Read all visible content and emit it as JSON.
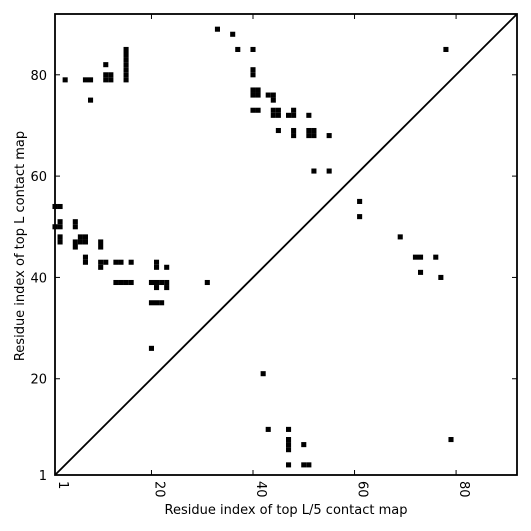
{
  "chart_data": {
    "type": "scatter",
    "title": "",
    "xlabel": "Residue index of top L/5 contact map",
    "ylabel": "Residue index of top L contact map",
    "xlim": [
      1,
      92
    ],
    "ylim": [
      1,
      92
    ],
    "xticks": [
      1,
      20,
      40,
      60,
      80
    ],
    "yticks": [
      1,
      20,
      40,
      60,
      80
    ],
    "grid": false,
    "diagonal": true,
    "marker_color": "#000000",
    "upper_triangle": {
      "name": "top L contact map",
      "points": [
        [
          3,
          79
        ],
        [
          7,
          79
        ],
        [
          8,
          79
        ],
        [
          8,
          75
        ],
        [
          11,
          79
        ],
        [
          11,
          80
        ],
        [
          12,
          79
        ],
        [
          12,
          80
        ],
        [
          11,
          82
        ],
        [
          15,
          79
        ],
        [
          15,
          80
        ],
        [
          15,
          81
        ],
        [
          15,
          82
        ],
        [
          15,
          83
        ],
        [
          15,
          84
        ],
        [
          15,
          85
        ],
        [
          33,
          89
        ],
        [
          36,
          88
        ],
        [
          37,
          85
        ],
        [
          40,
          85
        ],
        [
          40,
          81
        ],
        [
          40,
          80
        ],
        [
          40,
          77
        ],
        [
          41,
          77
        ],
        [
          40,
          76
        ],
        [
          41,
          76
        ],
        [
          40,
          73
        ],
        [
          41,
          73
        ],
        [
          43,
          76
        ],
        [
          44,
          76
        ],
        [
          44,
          75
        ],
        [
          44,
          73
        ],
        [
          45,
          73
        ],
        [
          44,
          72
        ],
        [
          45,
          72
        ],
        [
          45,
          69
        ],
        [
          47,
          72
        ],
        [
          48,
          72
        ],
        [
          48,
          73
        ],
        [
          48,
          69
        ],
        [
          48,
          68
        ],
        [
          51,
          72
        ],
        [
          51,
          69
        ],
        [
          52,
          69
        ],
        [
          51,
          68
        ],
        [
          52,
          68
        ],
        [
          55,
          68
        ],
        [
          52,
          61
        ],
        [
          55,
          61
        ],
        [
          1,
          54
        ],
        [
          2,
          54
        ],
        [
          1,
          50
        ],
        [
          2,
          50
        ],
        [
          2,
          51
        ],
        [
          2,
          48
        ],
        [
          2,
          47
        ],
        [
          5,
          51
        ],
        [
          5,
          50
        ],
        [
          5,
          47
        ],
        [
          5,
          46
        ],
        [
          6,
          48
        ],
        [
          7,
          48
        ],
        [
          6,
          47
        ],
        [
          7,
          47
        ],
        [
          7,
          44
        ],
        [
          7,
          43
        ],
        [
          10,
          47
        ],
        [
          10,
          46
        ],
        [
          10,
          43
        ],
        [
          11,
          43
        ],
        [
          10,
          42
        ],
        [
          13,
          43
        ],
        [
          14,
          43
        ],
        [
          16,
          43
        ],
        [
          13,
          39
        ],
        [
          14,
          39
        ],
        [
          15,
          39
        ],
        [
          16,
          39
        ],
        [
          21,
          43
        ],
        [
          21,
          42
        ],
        [
          23,
          42
        ],
        [
          20,
          39
        ],
        [
          21,
          39
        ],
        [
          22,
          39
        ],
        [
          23,
          39
        ],
        [
          21,
          38
        ],
        [
          23,
          38
        ],
        [
          20,
          35
        ],
        [
          21,
          35
        ],
        [
          22,
          35
        ],
        [
          31,
          39
        ],
        [
          20,
          26
        ]
      ]
    },
    "lower_triangle": {
      "name": "top L/5 contact map",
      "points": [
        [
          78,
          85
        ],
        [
          61,
          55
        ],
        [
          61,
          52
        ],
        [
          69,
          48
        ],
        [
          72,
          44
        ],
        [
          73,
          44
        ],
        [
          76,
          44
        ],
        [
          73,
          41
        ],
        [
          77,
          40
        ],
        [
          42,
          21
        ],
        [
          43,
          10
        ],
        [
          47,
          10
        ],
        [
          47,
          8
        ],
        [
          47,
          7
        ],
        [
          47,
          6
        ],
        [
          50,
          7
        ],
        [
          47,
          3
        ],
        [
          50,
          3
        ],
        [
          51,
          3
        ],
        [
          79,
          8
        ]
      ]
    }
  }
}
